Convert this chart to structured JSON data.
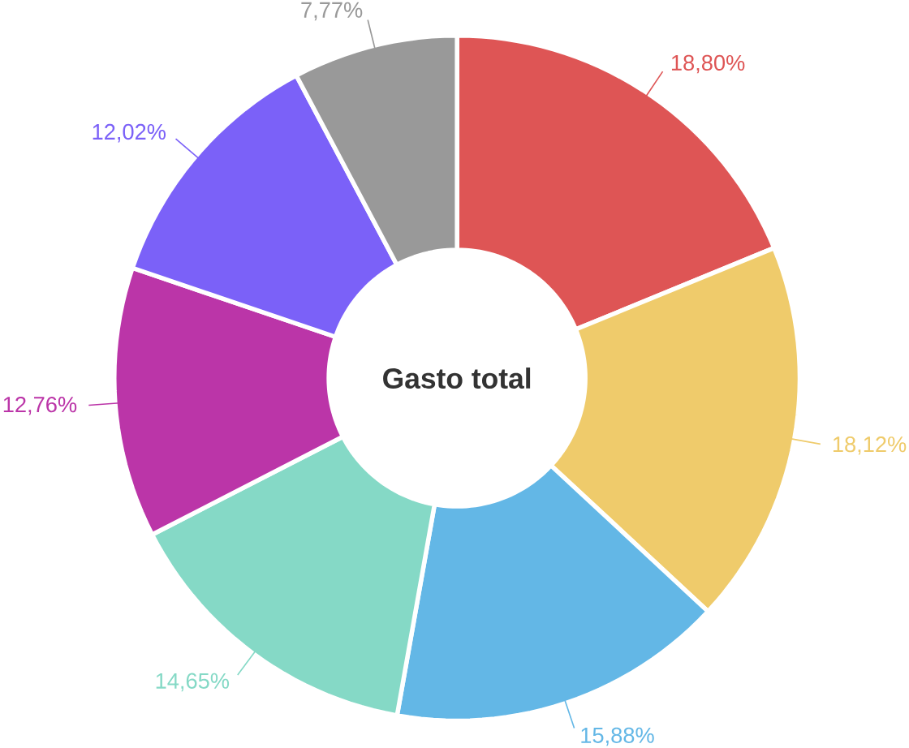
{
  "chart_data": {
    "type": "donut",
    "title": "Gasto total",
    "categories": [
      null,
      null,
      null,
      null,
      null,
      null,
      null
    ],
    "values": [
      18.8,
      18.12,
      15.88,
      14.65,
      12.76,
      12.02,
      7.77
    ],
    "value_labels": [
      "18,80%",
      "18,12%",
      "15,88%",
      "14,65%",
      "12,76%",
      "12,02%",
      "7,77%"
    ],
    "colors": [
      "#de5555",
      "#efcb6b",
      "#63b7e6",
      "#85d9c6",
      "#bb35a8",
      "#7b61f8",
      "#999999"
    ]
  }
}
